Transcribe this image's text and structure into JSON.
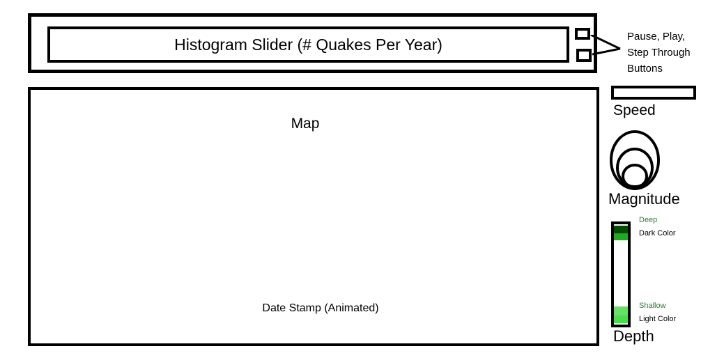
{
  "histogram_slider": {
    "label": "Histogram Slider (# Quakes Per Year)"
  },
  "buttons_note": {
    "lines": [
      "Pause, Play,",
      "Step Through",
      "Buttons"
    ]
  },
  "map": {
    "label": "Map",
    "date_stamp": "Date Stamp (Animated)"
  },
  "speed": {
    "label": "Speed"
  },
  "magnitude": {
    "label": "Magnitude"
  },
  "depth": {
    "label": "Depth",
    "deep_label": "Deep",
    "dark_color_label": "Dark Color",
    "shallow_label": "Shallow",
    "light_color_label": "Light Color"
  },
  "colors": {
    "deep_text": "#2e7d32",
    "shallow_text": "#2e7d32",
    "depth_darkest": "#004d00",
    "depth_dark": "#22a822",
    "depth_light": "#66e066",
    "depth_lightest": "#4cdb4c"
  }
}
